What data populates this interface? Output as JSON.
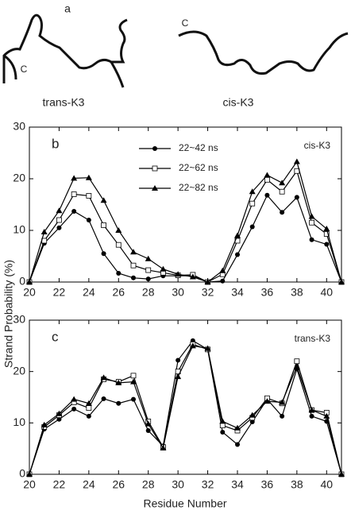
{
  "figure": {
    "panel_a": {
      "label": "a",
      "terminus_labels": [
        "C",
        "C"
      ],
      "captions": [
        "trans-K3",
        "cis-K3"
      ]
    },
    "y_label": "Strand Probability (%)",
    "x_label": "Residue Number"
  },
  "chart_data": [
    {
      "type": "line",
      "panel_label": "b",
      "annotation": "cis-K3",
      "x": [
        20,
        21,
        22,
        23,
        24,
        25,
        26,
        27,
        28,
        29,
        30,
        31,
        32,
        33,
        34,
        35,
        36,
        37,
        38,
        39,
        40,
        41
      ],
      "xlim": [
        20,
        41
      ],
      "xticks": [
        20,
        22,
        24,
        26,
        28,
        30,
        32,
        34,
        36,
        38,
        40
      ],
      "ylim": [
        0,
        30
      ],
      "yticks": [
        0,
        10,
        20,
        30
      ],
      "legend": true,
      "series": [
        {
          "name": "22~42 ns",
          "color": "#000000",
          "marker": "circle",
          "values": [
            0,
            7.5,
            10.5,
            13.7,
            12,
            5.5,
            1.7,
            0.8,
            0.6,
            1.2,
            1.2,
            1.2,
            0,
            0.2,
            5.3,
            10.7,
            16.8,
            13.5,
            16.4,
            8.2,
            7.3,
            0
          ]
        },
        {
          "name": "22~62 ns",
          "color": "#000000",
          "marker": "square",
          "values": [
            0,
            8,
            12,
            17,
            16.7,
            11,
            7.2,
            3.2,
            2.3,
            1.8,
            1.3,
            1.4,
            0,
            1.5,
            8,
            15.2,
            19.8,
            17.5,
            21.5,
            11.5,
            9.3,
            0
          ]
        },
        {
          "name": "22~82 ns",
          "color": "#000000",
          "marker": "triangle",
          "values": [
            0,
            9.7,
            13.8,
            20.1,
            20.2,
            15.8,
            10,
            5.8,
            4.5,
            2.5,
            1.5,
            1,
            0,
            2.2,
            9,
            17.5,
            20.7,
            19.2,
            23.3,
            12.7,
            10.3,
            0
          ]
        }
      ]
    },
    {
      "type": "line",
      "panel_label": "c",
      "annotation": "trans-K3",
      "x": [
        20,
        21,
        22,
        23,
        24,
        25,
        26,
        27,
        28,
        29,
        30,
        31,
        32,
        33,
        34,
        35,
        36,
        37,
        38,
        39,
        40,
        41
      ],
      "xlim": [
        20,
        41
      ],
      "xticks": [
        20,
        22,
        24,
        26,
        28,
        30,
        32,
        34,
        36,
        38,
        40
      ],
      "ylim": [
        0,
        30
      ],
      "yticks": [
        0,
        10,
        20,
        30
      ],
      "legend": false,
      "series": [
        {
          "name": "22~42 ns",
          "color": "#000000",
          "marker": "circle",
          "values": [
            0,
            8.8,
            10.7,
            12.7,
            11.3,
            14.7,
            13.8,
            14.6,
            8.5,
            5.5,
            22.2,
            26,
            24.3,
            8.2,
            5.8,
            10.2,
            14.6,
            11.3,
            20.5,
            11.3,
            10.3,
            0
          ]
        },
        {
          "name": "22~62 ns",
          "color": "#000000",
          "marker": "square",
          "values": [
            0,
            9.2,
            11.5,
            14,
            12.9,
            18.5,
            18,
            19.2,
            10.3,
            5.3,
            20,
            25.3,
            24.3,
            9.5,
            8.5,
            11,
            14.8,
            13.8,
            22,
            12.5,
            12,
            0
          ]
        },
        {
          "name": "22~82 ns",
          "color": "#000000",
          "marker": "triangle",
          "values": [
            0,
            9.6,
            11.8,
            14.6,
            13.8,
            18.8,
            17.8,
            18,
            9.8,
            5.1,
            19,
            25,
            24.5,
            10.3,
            9,
            11.5,
            14.2,
            14,
            21,
            12.5,
            11.3,
            0
          ]
        }
      ]
    }
  ]
}
